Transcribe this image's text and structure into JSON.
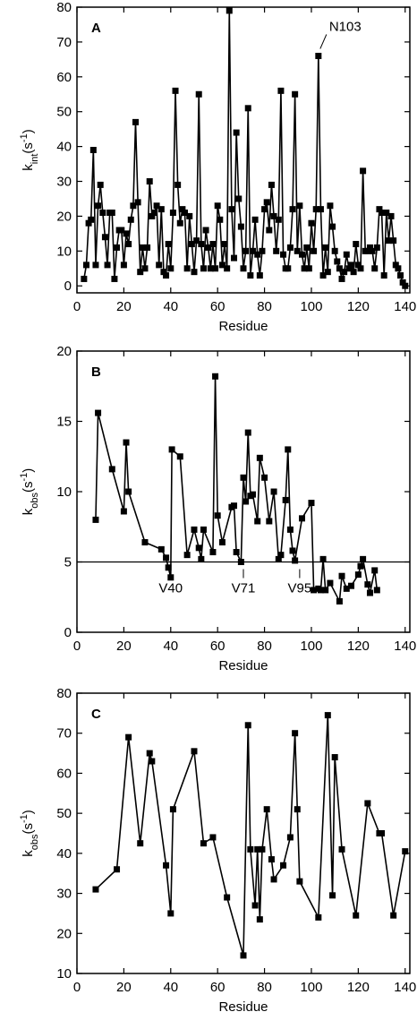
{
  "chart_data": [
    {
      "type": "line",
      "panel_label": "A",
      "xlabel": "Residue",
      "ylabel": [
        "k",
        "int",
        "(s",
        "-1",
        ")"
      ],
      "color": "#000000",
      "marker": "square",
      "x": [
        3,
        4,
        5,
        6,
        7,
        8,
        9,
        10,
        11,
        12,
        13,
        14,
        15,
        16,
        17,
        18,
        19,
        20,
        21,
        22,
        23,
        24,
        25,
        26,
        27,
        28,
        29,
        30,
        31,
        32,
        33,
        34,
        35,
        36,
        37,
        38,
        39,
        40,
        41,
        42,
        43,
        44,
        45,
        46,
        47,
        48,
        49,
        50,
        51,
        52,
        53,
        54,
        55,
        56,
        57,
        58,
        59,
        60,
        61,
        62,
        63,
        64,
        65,
        66,
        67,
        68,
        69,
        70,
        71,
        72,
        73,
        74,
        75,
        76,
        77,
        78,
        79,
        80,
        81,
        82,
        83,
        84,
        85,
        86,
        87,
        88,
        89,
        90,
        91,
        92,
        93,
        94,
        95,
        96,
        97,
        98,
        99,
        100,
        101,
        102,
        103,
        104,
        105,
        106,
        107,
        108,
        109,
        110,
        111,
        112,
        113,
        114,
        115,
        116,
        117,
        118,
        119,
        120,
        121,
        122,
        123,
        124,
        125,
        126,
        127,
        128,
        129,
        130,
        131,
        132,
        133,
        134,
        135,
        136,
        137,
        138,
        139,
        140
      ],
      "values": [
        2,
        6,
        18,
        19,
        39,
        6,
        23,
        29,
        21,
        14,
        6,
        21,
        21,
        2,
        11,
        16,
        16,
        6,
        15,
        12,
        19,
        23,
        47,
        24,
        4,
        11,
        5,
        11,
        30,
        20,
        21,
        23,
        6,
        22,
        4,
        3,
        12,
        5,
        21,
        56,
        29,
        18,
        22,
        21,
        5,
        20,
        12,
        4,
        13,
        55,
        12,
        5,
        16,
        11,
        5,
        12,
        5,
        23,
        19,
        6,
        12,
        5,
        79,
        22,
        8,
        44,
        25,
        17,
        5,
        10,
        51,
        3,
        10,
        19,
        9,
        3,
        10,
        22,
        24,
        16,
        29,
        20,
        10,
        19,
        56,
        9,
        5,
        5,
        11,
        22,
        55,
        10,
        23,
        9,
        5,
        11,
        5,
        18,
        10,
        22,
        66,
        22,
        3,
        11,
        4,
        23,
        17,
        10,
        7,
        5,
        2,
        4,
        9,
        5,
        6,
        4,
        12,
        6,
        5,
        33,
        10,
        10,
        11,
        10,
        5,
        11,
        22,
        21,
        3,
        21,
        13,
        20,
        13,
        6,
        5,
        3,
        1,
        0
      ],
      "xlim": [
        0,
        142
      ],
      "ylim": [
        -2,
        80
      ],
      "xticks": [
        0,
        20,
        40,
        60,
        80,
        100,
        120,
        140
      ],
      "yticks": [
        0,
        10,
        20,
        30,
        40,
        50,
        60,
        70,
        80
      ],
      "annotations": [
        {
          "text": "N103",
          "x": 103,
          "y": 66
        }
      ]
    },
    {
      "type": "line",
      "panel_label": "B",
      "xlabel": "Residue",
      "ylabel": [
        "k",
        "obs",
        "(s",
        "-1",
        ")"
      ],
      "color": "#000000",
      "marker": "square",
      "x": [
        8,
        9,
        15,
        20,
        21,
        22,
        29,
        36,
        38,
        39,
        40,
        40.5,
        44,
        47,
        50,
        52,
        53,
        54,
        58,
        59,
        60,
        62,
        66,
        67,
        68,
        70,
        71,
        72,
        73,
        74,
        75,
        77,
        78,
        80,
        82,
        84,
        86,
        87,
        89,
        90,
        91,
        92,
        93,
        96,
        100,
        101,
        103,
        104,
        105,
        106,
        108,
        112,
        113,
        115,
        117,
        120,
        121,
        122,
        124,
        125,
        127,
        128
      ],
      "values": [
        8,
        15.6,
        11.6,
        8.6,
        13.5,
        10,
        6.4,
        5.9,
        5.3,
        4.6,
        3.9,
        13,
        12.5,
        5.5,
        7.3,
        6,
        5.2,
        7.3,
        5.7,
        18.2,
        8.3,
        6.4,
        8.9,
        9,
        5.7,
        5,
        11,
        9.3,
        14.2,
        9.7,
        9.8,
        7.9,
        12.4,
        11,
        7.9,
        10,
        5.2,
        5.5,
        9.4,
        13,
        7.3,
        5.8,
        5.1,
        8.1,
        9.2,
        3,
        3.1,
        3,
        5.2,
        3,
        3.5,
        2.2,
        4,
        3.1,
        3.3,
        4.1,
        4.7,
        5.2,
        3.4,
        2.8,
        4.4,
        3
      ],
      "xlim": [
        0,
        142
      ],
      "ylim": [
        0,
        20
      ],
      "xticks": [
        0,
        20,
        40,
        60,
        80,
        100,
        120,
        140
      ],
      "yticks": [
        0,
        5,
        10,
        15,
        20
      ],
      "hline": 5,
      "annotations": [
        {
          "text": "V40",
          "x": 40
        },
        {
          "text": "V71",
          "x": 71
        },
        {
          "text": "V95",
          "x": 95
        }
      ]
    },
    {
      "type": "line",
      "panel_label": "C",
      "xlabel": "Residue",
      "ylabel": [
        "k",
        "obs",
        "(s",
        "-1",
        ")"
      ],
      "color": "#000000",
      "marker": "square",
      "x": [
        8,
        17,
        22,
        27,
        31,
        32,
        38,
        40,
        41,
        50,
        54,
        58,
        64,
        71,
        73,
        74,
        76,
        77,
        78,
        79,
        81,
        83,
        84,
        88,
        91,
        93,
        94,
        95,
        103,
        107,
        109,
        110,
        113,
        119,
        124,
        129,
        130,
        135,
        140
      ],
      "values": [
        31,
        36,
        69,
        42.5,
        65,
        63,
        37,
        25,
        51,
        65.5,
        42.5,
        44,
        29,
        14.5,
        72,
        41,
        27,
        41,
        23.5,
        41,
        51,
        38.5,
        33.5,
        37,
        44,
        70,
        51,
        33,
        24,
        74.5,
        29.5,
        64,
        41,
        24.5,
        52.5,
        45,
        45,
        24.5,
        40.5
      ],
      "xlim": [
        0,
        142
      ],
      "ylim": [
        10,
        80
      ],
      "xticks": [
        0,
        20,
        40,
        60,
        80,
        100,
        120,
        140
      ],
      "yticks": [
        10,
        20,
        30,
        40,
        50,
        60,
        70,
        80
      ]
    }
  ]
}
